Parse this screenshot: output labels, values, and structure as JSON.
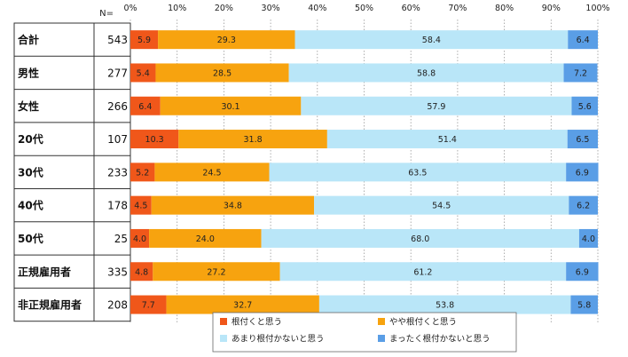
{
  "chart_data": {
    "type": "bar",
    "stacked": true,
    "orientation": "horizontal",
    "n_header": "N=",
    "x_ticks": [
      "0%",
      "10%",
      "20%",
      "30%",
      "40%",
      "50%",
      "60%",
      "70%",
      "80%",
      "90%",
      "100%"
    ],
    "xlim": [
      0,
      100
    ],
    "categories": [
      "合計",
      "男性",
      "女性",
      "20代",
      "30代",
      "40代",
      "50代",
      "正規雇用者",
      "非正規雇用者"
    ],
    "n": [
      543,
      277,
      266,
      107,
      233,
      178,
      25,
      335,
      208
    ],
    "series": [
      {
        "name": "根付くと思う",
        "color": "#f0571a",
        "values": [
          5.9,
          5.4,
          6.4,
          10.3,
          5.2,
          4.5,
          4.0,
          4.8,
          7.7
        ]
      },
      {
        "name": "やや根付くと思う",
        "color": "#f7a30f",
        "values": [
          29.3,
          28.5,
          30.1,
          31.8,
          24.5,
          34.8,
          24.0,
          27.2,
          32.7
        ]
      },
      {
        "name": "あまり根付かないと思う",
        "color": "#b9e6f8",
        "values": [
          58.4,
          58.8,
          57.9,
          51.4,
          63.5,
          54.5,
          68.0,
          61.2,
          53.8
        ]
      },
      {
        "name": "まったく根付かないと思う",
        "color": "#5a9ee6",
        "values": [
          6.4,
          7.2,
          5.6,
          6.5,
          6.9,
          6.2,
          4.0,
          6.9,
          5.8
        ]
      }
    ],
    "legend_position": "bottom",
    "grid": true
  }
}
